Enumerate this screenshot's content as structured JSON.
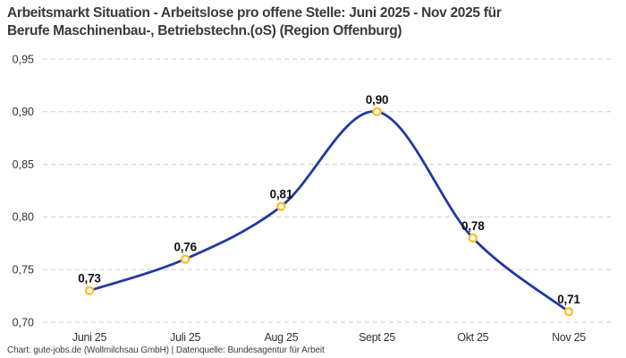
{
  "title_lines": [
    "Arbeitsmarkt Situation - Arbeitslose pro offene Stelle: Juni 2025 - Nov 2025 für",
    "Berufe Maschinenbau-, Betriebstechn.(oS) (Region Offenburg)"
  ],
  "footer": "Chart: gute-jobs.de (Wollmilchsau GmbH) | Datenquelle: Bundesagentur für Arbeit",
  "chart_data": {
    "type": "line",
    "title": "Arbeitsmarkt Situation - Arbeitslose pro offene Stelle: Juni 2025 - Nov 2025 für Berufe Maschinenbau-, Betriebstechn.(oS) (Region Offenburg)",
    "categories": [
      "Juni 25",
      "Juli 25",
      "Aug 25",
      "Sept 25",
      "Okt 25",
      "Nov 25"
    ],
    "values": [
      0.73,
      0.76,
      0.81,
      0.9,
      0.78,
      0.71
    ],
    "data_labels": [
      "0,73",
      "0,76",
      "0,81",
      "0,90",
      "0,78",
      "0,71"
    ],
    "y_ticks": [
      0.7,
      0.75,
      0.8,
      0.85,
      0.9,
      0.95
    ],
    "y_tick_labels": [
      "0,70",
      "0,75",
      "0,80",
      "0,85",
      "0,90",
      "0,95"
    ],
    "ylim": [
      0.7,
      0.95
    ],
    "xlabel": "",
    "ylabel": "",
    "grid": "horizontal-dashed",
    "legend": "none",
    "curve": "smooth-spline",
    "colors": {
      "line": "#24389e",
      "marker_stroke": "#fcc331",
      "marker_fill": "#ffffff",
      "grid_line": "#cbcbcb",
      "axis_text": "#333333",
      "data_label_text": "#111111",
      "title_text": "#3a3a3a",
      "background": "#ffffff"
    }
  }
}
